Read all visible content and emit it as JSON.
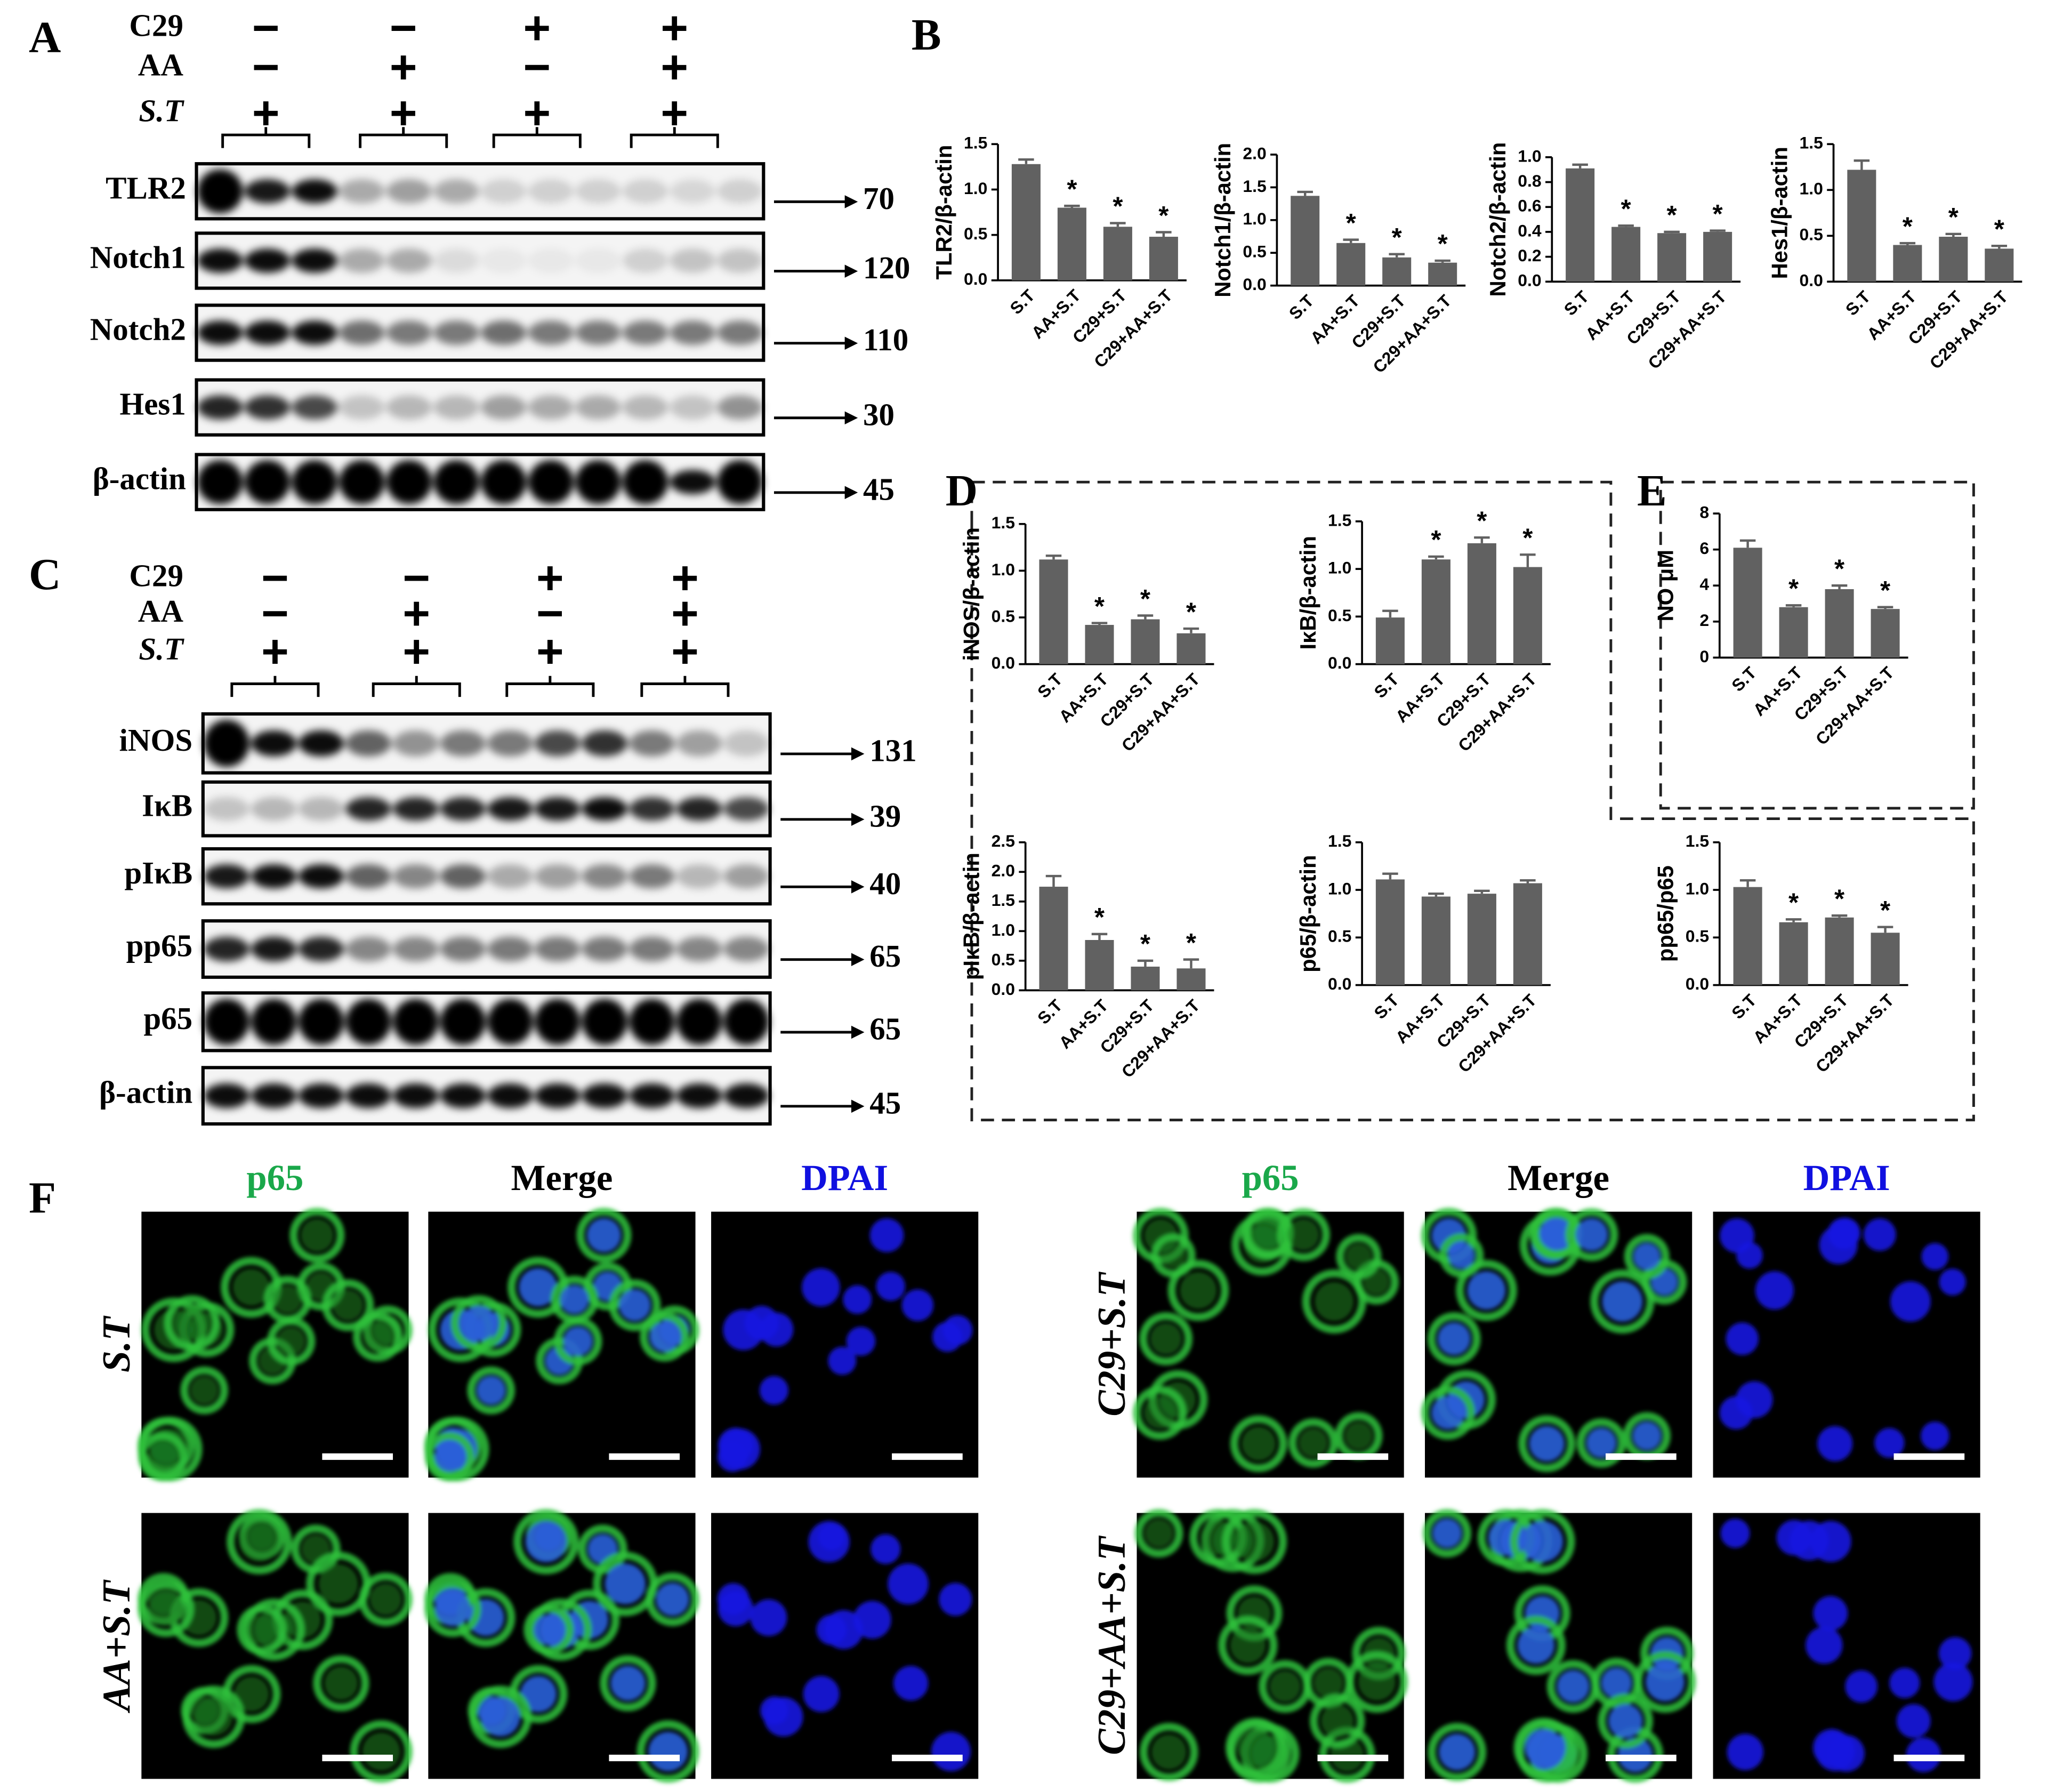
{
  "panel_labels": [
    "A",
    "B",
    "C",
    "D",
    "E",
    "F"
  ],
  "blots": [
    {
      "treatments": [
        {
          "name": "C29",
          "signs": [
            "−",
            "−",
            "+",
            "+"
          ]
        },
        {
          "name": "AA",
          "signs": [
            "−",
            "+",
            "−",
            "+"
          ]
        },
        {
          "name": "S.T",
          "signs": [
            "+",
            "+",
            "+",
            "+"
          ]
        }
      ],
      "rows": [
        {
          "label": "TLR2",
          "mw": 70
        },
        {
          "label": "Notch1",
          "mw": 120
        },
        {
          "label": "Notch2",
          "mw": 110
        },
        {
          "label": "Hes1",
          "mw": 30
        },
        {
          "label": "β-actin",
          "mw": 45
        }
      ]
    },
    {
      "treatments": [
        {
          "name": "C29",
          "signs": [
            "−",
            "−",
            "+",
            "+"
          ]
        },
        {
          "name": "AA",
          "signs": [
            "−",
            "+",
            "−",
            "+"
          ]
        },
        {
          "name": "S.T",
          "signs": [
            "+",
            "+",
            "+",
            "+"
          ]
        }
      ],
      "rows": [
        {
          "label": "iNOS",
          "mw": 131
        },
        {
          "label": "IκB",
          "mw": 39
        },
        {
          "label": "pIκB",
          "mw": 40
        },
        {
          "label": "pp65",
          "mw": 65
        },
        {
          "label": "p65",
          "mw": 65
        },
        {
          "label": "β-actin",
          "mw": 45
        }
      ]
    }
  ],
  "chart_data": [
    {
      "type": "bar",
      "y_label": "TLR2/β-actin",
      "categories": [
        "S.T",
        "AA+S.T",
        "C29+S.T",
        "C29+AA+S.T"
      ],
      "values": [
        1.28,
        0.8,
        0.59,
        0.48
      ],
      "errors": [
        0.05,
        0.02,
        0.04,
        0.05
      ],
      "markers": [
        null,
        "*",
        "*",
        "*"
      ],
      "color": "#616161",
      "ylim": [
        0,
        1.5
      ],
      "yticks": [
        {
          "value": 0,
          "label": "0.0"
        },
        0.5,
        {
          "value": 1,
          "label": "1.0"
        },
        1.5
      ]
    },
    {
      "type": "bar",
      "y_label": "Notch1/β-actin",
      "categories": [
        "S.T",
        "AA+S.T",
        "C29+S.T",
        "C29+AA+S.T"
      ],
      "values": [
        1.37,
        0.65,
        0.43,
        0.35
      ],
      "errors": [
        0.06,
        0.05,
        0.05,
        0.03
      ],
      "markers": [
        null,
        "*",
        "*",
        "*"
      ],
      "color": "#616161",
      "ylim": [
        0,
        2
      ],
      "yticks": [
        {
          "value": 0,
          "label": "0.0"
        },
        0.5,
        {
          "value": 1,
          "label": "1.0"
        },
        1.5,
        {
          "value": 2,
          "label": "2.0"
        }
      ]
    },
    {
      "type": "bar",
      "y_label": "Notch2/β-actin",
      "categories": [
        "S.T",
        "AA+S.T",
        "C29+S.T",
        "C29+AA+S.T"
      ],
      "values": [
        0.91,
        0.44,
        0.39,
        0.4
      ],
      "errors": [
        0.03,
        0.01,
        0.01,
        0.01
      ],
      "markers": [
        null,
        "*",
        "*",
        "*"
      ],
      "color": "#616161",
      "ylim": [
        0,
        1
      ],
      "yticks": [
        {
          "value": 0,
          "label": "0.0"
        },
        0.2,
        0.4,
        0.6,
        0.8,
        {
          "value": 1,
          "label": "1.0"
        }
      ]
    },
    {
      "type": "bar",
      "y_label": "Hes1/β-actin",
      "categories": [
        "S.T",
        "AA+S.T",
        "C29+S.T",
        "C29+AA+S.T"
      ],
      "values": [
        1.22,
        0.4,
        0.49,
        0.36
      ],
      "errors": [
        0.1,
        0.02,
        0.03,
        0.03
      ],
      "markers": [
        null,
        "*",
        "*",
        "*"
      ],
      "color": "#616161",
      "ylim": [
        0,
        1.5
      ],
      "yticks": [
        {
          "value": 0,
          "label": "0.0"
        },
        0.5,
        {
          "value": 1,
          "label": "1.0"
        },
        1.5
      ]
    },
    {
      "type": "bar",
      "y_label": "iNOS/β-actin",
      "categories": [
        "S.T",
        "AA+S.T",
        "C29+S.T",
        "C29+AA+S.T"
      ],
      "values": [
        1.12,
        0.42,
        0.48,
        0.33
      ],
      "errors": [
        0.04,
        0.02,
        0.04,
        0.05
      ],
      "markers": [
        null,
        "*",
        "*",
        "*"
      ],
      "color": "#616161",
      "ylim": [
        0,
        1.5
      ],
      "yticks": [
        {
          "value": 0,
          "label": "0.0"
        },
        0.5,
        {
          "value": 1,
          "label": "1.0"
        },
        1.5
      ]
    },
    {
      "type": "bar",
      "y_label": "IκB/β-actin",
      "categories": [
        "S.T",
        "AA+S.T",
        "C29+S.T",
        "C29+AA+S.T"
      ],
      "values": [
        0.49,
        1.1,
        1.27,
        1.02
      ],
      "errors": [
        0.07,
        0.03,
        0.06,
        0.13
      ],
      "markers": [
        null,
        "*",
        "*",
        "*"
      ],
      "color": "#616161",
      "ylim": [
        0,
        1.5
      ],
      "yticks": [
        {
          "value": 0,
          "label": "0.0"
        },
        0.5,
        {
          "value": 1,
          "label": "1.0"
        },
        1.5
      ]
    },
    {
      "type": "bar",
      "y_label": "pIκB/β-actin",
      "categories": [
        "S.T",
        "AA+S.T",
        "C29+S.T",
        "C29+AA+S.T"
      ],
      "values": [
        1.75,
        0.85,
        0.4,
        0.37
      ],
      "errors": [
        0.18,
        0.1,
        0.1,
        0.15
      ],
      "markers": [
        null,
        "*",
        "*",
        "*"
      ],
      "color": "#616161",
      "ylim": [
        0,
        2.5
      ],
      "yticks": [
        {
          "value": 0,
          "label": "0.0"
        },
        0.5,
        {
          "value": 1,
          "label": "1.0"
        },
        1.5,
        {
          "value": 2,
          "label": "2.0"
        },
        2.5
      ]
    },
    {
      "type": "bar",
      "y_label": "p65/β-actin",
      "categories": [
        "S.T",
        "AA+S.T",
        "C29+S.T",
        "C29+AA+S.T"
      ],
      "values": [
        1.11,
        0.93,
        0.96,
        1.07
      ],
      "errors": [
        0.06,
        0.03,
        0.03,
        0.03
      ],
      "markers": [
        null,
        null,
        null,
        null
      ],
      "color": "#616161",
      "ylim": [
        0,
        1.5
      ],
      "yticks": [
        {
          "value": 0,
          "label": "0.0"
        },
        0.5,
        {
          "value": 1,
          "label": "1.0"
        },
        1.5
      ]
    },
    {
      "type": "bar",
      "y_label": "NO μM",
      "categories": [
        "S.T",
        "AA+S.T",
        "C29+S.T",
        "C29+AA+S.T"
      ],
      "values": [
        6.1,
        2.8,
        3.8,
        2.7
      ],
      "errors": [
        0.4,
        0.1,
        0.2,
        0.1
      ],
      "markers": [
        null,
        "*",
        "*",
        "*"
      ],
      "color": "#616161",
      "ylim": [
        0,
        8
      ],
      "yticks": [
        0,
        2,
        4,
        6,
        8
      ]
    },
    {
      "type": "bar",
      "y_label": "pp65/p65",
      "categories": [
        "S.T",
        "AA+S.T",
        "C29+S.T",
        "C29+AA+S.T"
      ],
      "values": [
        1.03,
        0.66,
        0.71,
        0.55
      ],
      "errors": [
        0.07,
        0.03,
        0.02,
        0.06
      ],
      "markers": [
        null,
        "*",
        "*",
        "*"
      ],
      "color": "#616161",
      "ylim": [
        0,
        1.5
      ],
      "yticks": [
        {
          "value": 0,
          "label": "0.0"
        },
        0.5,
        {
          "value": 1,
          "label": "1.0"
        },
        1.5
      ]
    }
  ],
  "micrographs": {
    "channels": [
      "p65",
      "Merge",
      "DPAI"
    ],
    "groups": [
      [
        "S.T",
        "AA+S.T"
      ],
      [
        "C29+S.T",
        "C29+AA+S.T"
      ]
    ]
  }
}
